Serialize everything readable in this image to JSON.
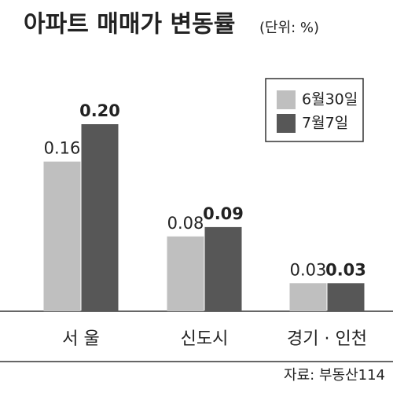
{
  "chart_data": {
    "type": "bar",
    "title": "아파트 매매가 변동률",
    "subtitle": "(단위: %)",
    "source": "자료: 부동산114",
    "categories": [
      "서 울",
      "신도시",
      "경기 · 인천"
    ],
    "series": [
      {
        "name": "6월30일",
        "color": "#bfbfbf",
        "values": [
          0.16,
          0.08,
          0.03
        ],
        "value_labels": [
          "0.16",
          "0.08",
          "0.03"
        ]
      },
      {
        "name": "7월7일",
        "color": "#575757",
        "values": [
          0.2,
          0.09,
          0.03
        ],
        "value_labels": [
          "0.20",
          "0.09",
          "0.03"
        ]
      }
    ]
  }
}
